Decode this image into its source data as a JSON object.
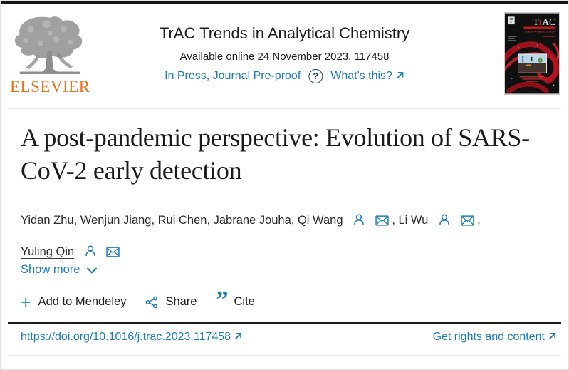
{
  "header": {
    "publisher_label": "ELSEVIER",
    "journal_title": "TrAC Trends in Analytical Chemistry",
    "availability": "Available online 24 November 2023, 117458",
    "status_link": "In Press, Journal Pre-proof",
    "question_mark": "?",
    "whats_this": "What's this?",
    "cover": {
      "masthead": "TrAC",
      "masthead_r": "r",
      "subtitle": "Trends in Analytical Chemistry"
    }
  },
  "article": {
    "title": "A post-pandemic perspective: Evolution of SARS-CoV-2 early detection",
    "authors": [
      {
        "name": "Yidan Zhu",
        "icons": false
      },
      {
        "name": "Wenjun Jiang",
        "icons": false
      },
      {
        "name": "Rui Chen",
        "icons": false
      },
      {
        "name": "Jabrane Jouha",
        "icons": false
      },
      {
        "name": "Qi Wang",
        "icons": true
      },
      {
        "name": "Li Wu",
        "icons": true
      },
      {
        "name": "Yuling Qin",
        "icons": true
      }
    ],
    "show_more": "Show more"
  },
  "actions": {
    "plus_glyph": "+",
    "mendeley": "Add to Mendeley",
    "share": "Share",
    "cite_glyph": "”",
    "cite": "Cite"
  },
  "footer": {
    "doi": "https://doi.org/10.1016/j.trac.2023.117458",
    "rights": "Get rights and content"
  },
  "colors": {
    "link_blue": "#1a7cb8",
    "navy": "#15416b",
    "elsevier_orange": "#e9711c",
    "text_dark": "#1e1e1e",
    "cover_red": "#b81c1c"
  }
}
